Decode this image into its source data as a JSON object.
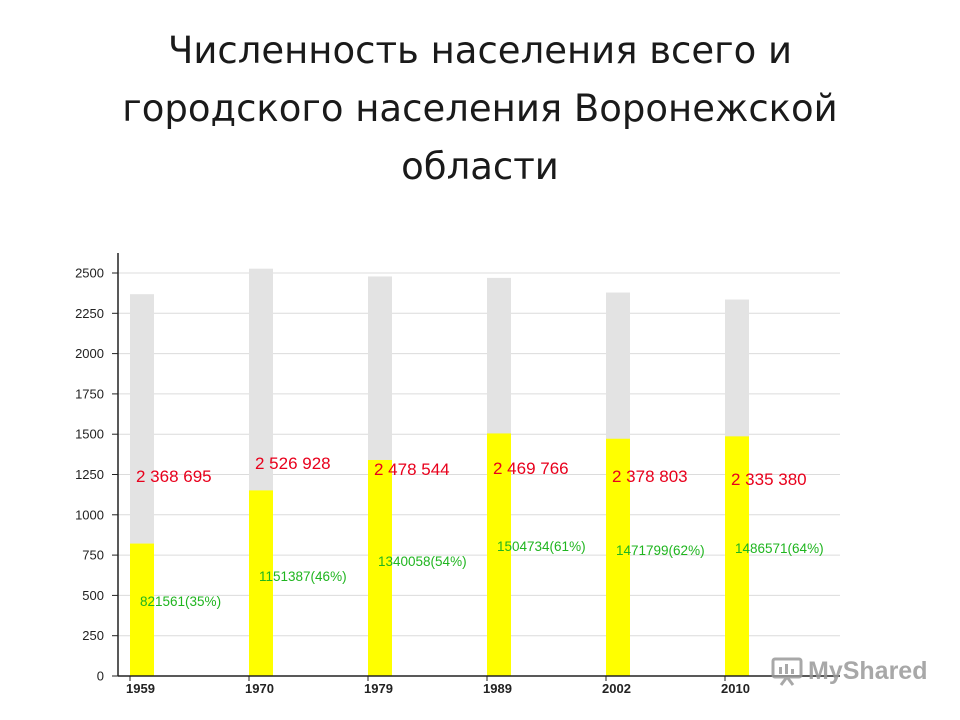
{
  "slide": {
    "title": "Численность населения всего и городского населения Воронежской области"
  },
  "chart_data": {
    "type": "bar",
    "categories": [
      "1959",
      "1970",
      "1979",
      "1989",
      "2002",
      "2010"
    ],
    "ylim": [
      0,
      2500
    ],
    "yticks": [
      0,
      250,
      500,
      750,
      1000,
      1250,
      1500,
      1750,
      2000,
      2250,
      2500
    ],
    "grid": true,
    "series": [
      {
        "values": [
          2368.695,
          2526.928,
          2478.544,
          2469.766,
          2378.803,
          2335.38
        ]
      },
      {
        "values": [
          821.561,
          1151.387,
          1340.058,
          1504.734,
          1471.799,
          1486.571
        ]
      }
    ],
    "total_labels": [
      "2 368 695",
      "2 526 928",
      "2 478 544",
      "2 469 766",
      "2 378 803",
      "2 335 380"
    ],
    "urban_labels": [
      "821561(35%)",
      "1151387(46%)",
      "1340058(54%)",
      "1504734(61%)",
      "1471799(62%)",
      "1486571(64%)"
    ],
    "colors": {
      "total_bar": "#e3e3e3",
      "urban_bar": "#ffff00",
      "total_label": "#e8001c",
      "urban_label": "#1fb51f",
      "axis": "#222222",
      "grid": "#dcdcdc"
    }
  },
  "watermark": {
    "text": "MyShared",
    "icon": "presentation-icon"
  }
}
